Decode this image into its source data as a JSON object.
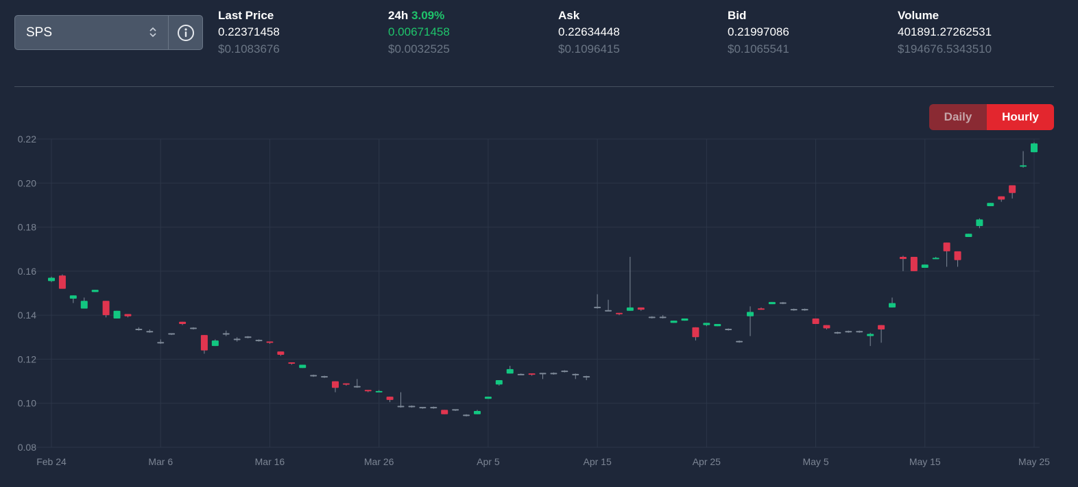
{
  "selector": {
    "value": "SPS",
    "arrows": "▲▼"
  },
  "stats": [
    {
      "label": "Last Price",
      "label_extra": "",
      "value": "0.22371458",
      "usd": "$0.1083676"
    },
    {
      "label": "24h",
      "label_extra": "3.09%",
      "value": "0.00671458",
      "usd": "$0.0032525"
    },
    {
      "label": "Ask",
      "label_extra": "",
      "value": "0.22634448",
      "usd": "$0.1096415"
    },
    {
      "label": "Bid",
      "label_extra": "",
      "value": "0.21997086",
      "usd": "$0.1065541"
    },
    {
      "label": "Volume",
      "label_extra": "",
      "value": "401891.27262531",
      "usd": "$194676.5343510"
    }
  ],
  "toggle": {
    "daily": "Daily",
    "hourly": "Hourly",
    "active": "hourly"
  },
  "colors": {
    "up": "#12c781",
    "down": "#e0354f",
    "neutral": "#7f8a99",
    "grid": "#2c3649",
    "axis_text": "#7c8594"
  },
  "chart_data": {
    "type": "candlestick",
    "title": "",
    "xlabel": "",
    "ylabel": "",
    "ylim": [
      0.08,
      0.22
    ],
    "yticks": [
      0.08,
      0.1,
      0.12,
      0.14,
      0.16,
      0.18,
      0.2,
      0.22
    ],
    "ytick_labels": [
      "0.08",
      "0.10",
      "0.12",
      "0.14",
      "0.16",
      "0.18",
      "0.20",
      "0.22"
    ],
    "xticks": [
      "Feb 24",
      "Mar 6",
      "Mar 16",
      "Mar 26",
      "Apr 5",
      "Apr 15",
      "Apr 25",
      "May 5",
      "May 15",
      "May 25"
    ],
    "grid": true,
    "legend": "none",
    "candles": [
      {
        "date": "Feb 24",
        "o": 0.1555,
        "h": 0.1575,
        "l": 0.155,
        "c": 0.157
      },
      {
        "date": "Feb 25",
        "o": 0.158,
        "h": 0.1585,
        "l": 0.152,
        "c": 0.152
      },
      {
        "date": "Feb 26",
        "o": 0.1475,
        "h": 0.149,
        "l": 0.1455,
        "c": 0.149
      },
      {
        "date": "Feb 27",
        "o": 0.143,
        "h": 0.148,
        "l": 0.143,
        "c": 0.1465
      },
      {
        "date": "Feb 28",
        "o": 0.1505,
        "h": 0.1515,
        "l": 0.1505,
        "c": 0.1515
      },
      {
        "date": "Mar 1",
        "o": 0.1465,
        "h": 0.1465,
        "l": 0.139,
        "c": 0.14
      },
      {
        "date": "Mar 2",
        "o": 0.1385,
        "h": 0.142,
        "l": 0.1385,
        "c": 0.142
      },
      {
        "date": "Mar 3",
        "o": 0.1405,
        "h": 0.1405,
        "l": 0.139,
        "c": 0.1395
      },
      {
        "date": "Mar 4",
        "o": 0.1335,
        "h": 0.1345,
        "l": 0.133,
        "c": 0.1335
      },
      {
        "date": "Mar 5",
        "o": 0.1325,
        "h": 0.1335,
        "l": 0.132,
        "c": 0.1325
      },
      {
        "date": "Mar 6",
        "o": 0.1275,
        "h": 0.129,
        "l": 0.127,
        "c": 0.1275
      },
      {
        "date": "Mar 7",
        "o": 0.1315,
        "h": 0.1315,
        "l": 0.131,
        "c": 0.1315
      },
      {
        "date": "Mar 8",
        "o": 0.137,
        "h": 0.137,
        "l": 0.1355,
        "c": 0.136
      },
      {
        "date": "Mar 9",
        "o": 0.134,
        "h": 0.1345,
        "l": 0.1335,
        "c": 0.134
      },
      {
        "date": "Mar 10",
        "o": 0.131,
        "h": 0.131,
        "l": 0.1225,
        "c": 0.124
      },
      {
        "date": "Mar 11",
        "o": 0.126,
        "h": 0.129,
        "l": 0.126,
        "c": 0.1285
      },
      {
        "date": "Mar 12",
        "o": 0.1315,
        "h": 0.133,
        "l": 0.1305,
        "c": 0.1315
      },
      {
        "date": "Mar 13",
        "o": 0.129,
        "h": 0.13,
        "l": 0.128,
        "c": 0.129
      },
      {
        "date": "Mar 14",
        "o": 0.13,
        "h": 0.1305,
        "l": 0.1295,
        "c": 0.13
      },
      {
        "date": "Mar 15",
        "o": 0.1285,
        "h": 0.129,
        "l": 0.128,
        "c": 0.1285
      },
      {
        "date": "Mar 16",
        "o": 0.128,
        "h": 0.128,
        "l": 0.127,
        "c": 0.1275
      },
      {
        "date": "Mar 17",
        "o": 0.1235,
        "h": 0.1235,
        "l": 0.1215,
        "c": 0.122
      },
      {
        "date": "Mar 18",
        "o": 0.1185,
        "h": 0.1185,
        "l": 0.1175,
        "c": 0.118
      },
      {
        "date": "Mar 19",
        "o": 0.116,
        "h": 0.1175,
        "l": 0.116,
        "c": 0.1175
      },
      {
        "date": "Mar 20",
        "o": 0.1125,
        "h": 0.113,
        "l": 0.112,
        "c": 0.1125
      },
      {
        "date": "Mar 21",
        "o": 0.112,
        "h": 0.1125,
        "l": 0.1115,
        "c": 0.112
      },
      {
        "date": "Mar 22",
        "o": 0.11,
        "h": 0.11,
        "l": 0.105,
        "c": 0.107
      },
      {
        "date": "Mar 23",
        "o": 0.109,
        "h": 0.109,
        "l": 0.108,
        "c": 0.1085
      },
      {
        "date": "Mar 24",
        "o": 0.1075,
        "h": 0.111,
        "l": 0.107,
        "c": 0.1075
      },
      {
        "date": "Mar 25",
        "o": 0.106,
        "h": 0.106,
        "l": 0.105,
        "c": 0.1055
      },
      {
        "date": "Mar 26",
        "o": 0.105,
        "h": 0.106,
        "l": 0.105,
        "c": 0.1055
      },
      {
        "date": "Mar 27",
        "o": 0.103,
        "h": 0.103,
        "l": 0.1005,
        "c": 0.1015
      },
      {
        "date": "Mar 28",
        "o": 0.0985,
        "h": 0.105,
        "l": 0.098,
        "c": 0.0985
      },
      {
        "date": "Mar 29",
        "o": 0.0985,
        "h": 0.099,
        "l": 0.098,
        "c": 0.0985
      },
      {
        "date": "Mar 30",
        "o": 0.098,
        "h": 0.098,
        "l": 0.0975,
        "c": 0.098
      },
      {
        "date": "Mar 31",
        "o": 0.098,
        "h": 0.0985,
        "l": 0.0975,
        "c": 0.098
      },
      {
        "date": "Apr 1",
        "o": 0.097,
        "h": 0.097,
        "l": 0.095,
        "c": 0.095
      },
      {
        "date": "Apr 2",
        "o": 0.097,
        "h": 0.097,
        "l": 0.0965,
        "c": 0.097
      },
      {
        "date": "Apr 3",
        "o": 0.0945,
        "h": 0.095,
        "l": 0.094,
        "c": 0.0945
      },
      {
        "date": "Apr 4",
        "o": 0.095,
        "h": 0.097,
        "l": 0.095,
        "c": 0.0965
      },
      {
        "date": "Apr 5",
        "o": 0.102,
        "h": 0.103,
        "l": 0.102,
        "c": 0.103
      },
      {
        "date": "Apr 6",
        "o": 0.1085,
        "h": 0.1105,
        "l": 0.108,
        "c": 0.1105
      },
      {
        "date": "Apr 7",
        "o": 0.1135,
        "h": 0.117,
        "l": 0.1135,
        "c": 0.1155
      },
      {
        "date": "Apr 8",
        "o": 0.113,
        "h": 0.1135,
        "l": 0.113,
        "c": 0.113
      },
      {
        "date": "Apr 9",
        "o": 0.1135,
        "h": 0.1135,
        "l": 0.1125,
        "c": 0.113
      },
      {
        "date": "Apr 10",
        "o": 0.1135,
        "h": 0.1135,
        "l": 0.111,
        "c": 0.1135
      },
      {
        "date": "Apr 11",
        "o": 0.1135,
        "h": 0.114,
        "l": 0.113,
        "c": 0.1135
      },
      {
        "date": "Apr 12",
        "o": 0.1145,
        "h": 0.115,
        "l": 0.114,
        "c": 0.1145
      },
      {
        "date": "Apr 13",
        "o": 0.113,
        "h": 0.1135,
        "l": 0.111,
        "c": 0.113
      },
      {
        "date": "Apr 14",
        "o": 0.112,
        "h": 0.1125,
        "l": 0.1105,
        "c": 0.112
      },
      {
        "date": "Apr 15",
        "o": 0.1435,
        "h": 0.1495,
        "l": 0.143,
        "c": 0.1435
      },
      {
        "date": "Apr 16",
        "o": 0.142,
        "h": 0.147,
        "l": 0.142,
        "c": 0.142
      },
      {
        "date": "Apr 17",
        "o": 0.141,
        "h": 0.141,
        "l": 0.14,
        "c": 0.1405
      },
      {
        "date": "Apr 18",
        "o": 0.142,
        "h": 0.1665,
        "l": 0.142,
        "c": 0.1435
      },
      {
        "date": "Apr 19",
        "o": 0.1435,
        "h": 0.1435,
        "l": 0.142,
        "c": 0.1425
      },
      {
        "date": "Apr 20",
        "o": 0.139,
        "h": 0.1395,
        "l": 0.1385,
        "c": 0.139
      },
      {
        "date": "Apr 21",
        "o": 0.139,
        "h": 0.14,
        "l": 0.1385,
        "c": 0.139
      },
      {
        "date": "Apr 22",
        "o": 0.1365,
        "h": 0.1375,
        "l": 0.1365,
        "c": 0.1375
      },
      {
        "date": "Apr 23",
        "o": 0.1375,
        "h": 0.1385,
        "l": 0.1375,
        "c": 0.1385
      },
      {
        "date": "Apr 24",
        "o": 0.1345,
        "h": 0.1345,
        "l": 0.1285,
        "c": 0.13
      },
      {
        "date": "Apr 25",
        "o": 0.1355,
        "h": 0.1365,
        "l": 0.135,
        "c": 0.1365
      },
      {
        "date": "Apr 26",
        "o": 0.135,
        "h": 0.136,
        "l": 0.135,
        "c": 0.136
      },
      {
        "date": "Apr 27",
        "o": 0.1335,
        "h": 0.134,
        "l": 0.133,
        "c": 0.1335
      },
      {
        "date": "Apr 28",
        "o": 0.128,
        "h": 0.1285,
        "l": 0.1275,
        "c": 0.128
      },
      {
        "date": "Apr 29",
        "o": 0.1395,
        "h": 0.144,
        "l": 0.1305,
        "c": 0.1415
      },
      {
        "date": "Apr 30",
        "o": 0.143,
        "h": 0.1435,
        "l": 0.1425,
        "c": 0.1425
      },
      {
        "date": "May 1",
        "o": 0.145,
        "h": 0.146,
        "l": 0.145,
        "c": 0.146
      },
      {
        "date": "May 2",
        "o": 0.1455,
        "h": 0.146,
        "l": 0.145,
        "c": 0.1455
      },
      {
        "date": "May 3",
        "o": 0.1425,
        "h": 0.143,
        "l": 0.142,
        "c": 0.1425
      },
      {
        "date": "May 4",
        "o": 0.1425,
        "h": 0.143,
        "l": 0.142,
        "c": 0.1425
      },
      {
        "date": "May 5",
        "o": 0.1385,
        "h": 0.1385,
        "l": 0.136,
        "c": 0.136
      },
      {
        "date": "May 6",
        "o": 0.1355,
        "h": 0.1355,
        "l": 0.1335,
        "c": 0.134
      },
      {
        "date": "May 7",
        "o": 0.132,
        "h": 0.1325,
        "l": 0.1315,
        "c": 0.132
      },
      {
        "date": "May 8",
        "o": 0.1325,
        "h": 0.133,
        "l": 0.132,
        "c": 0.1325
      },
      {
        "date": "May 9",
        "o": 0.1325,
        "h": 0.133,
        "l": 0.132,
        "c": 0.1325
      },
      {
        "date": "May 10",
        "o": 0.1305,
        "h": 0.132,
        "l": 0.126,
        "c": 0.1315
      },
      {
        "date": "May 11",
        "o": 0.1355,
        "h": 0.1355,
        "l": 0.1275,
        "c": 0.1335
      },
      {
        "date": "May 12",
        "o": 0.1435,
        "h": 0.148,
        "l": 0.1435,
        "c": 0.1455
      },
      {
        "date": "May 13",
        "o": 0.1665,
        "h": 0.167,
        "l": 0.16,
        "c": 0.1655
      },
      {
        "date": "May 14",
        "o": 0.1665,
        "h": 0.1665,
        "l": 0.16,
        "c": 0.16
      },
      {
        "date": "May 15",
        "o": 0.1615,
        "h": 0.163,
        "l": 0.1615,
        "c": 0.163
      },
      {
        "date": "May 16",
        "o": 0.1655,
        "h": 0.1665,
        "l": 0.1655,
        "c": 0.166
      },
      {
        "date": "May 17",
        "o": 0.173,
        "h": 0.173,
        "l": 0.162,
        "c": 0.169
      },
      {
        "date": "May 18",
        "o": 0.169,
        "h": 0.169,
        "l": 0.162,
        "c": 0.165
      },
      {
        "date": "May 19",
        "o": 0.1755,
        "h": 0.177,
        "l": 0.1755,
        "c": 0.177
      },
      {
        "date": "May 20",
        "o": 0.1805,
        "h": 0.184,
        "l": 0.1795,
        "c": 0.1835
      },
      {
        "date": "May 21",
        "o": 0.1895,
        "h": 0.191,
        "l": 0.1895,
        "c": 0.191
      },
      {
        "date": "May 22",
        "o": 0.194,
        "h": 0.194,
        "l": 0.1915,
        "c": 0.1925
      },
      {
        "date": "May 23",
        "o": 0.199,
        "h": 0.199,
        "l": 0.193,
        "c": 0.1955
      },
      {
        "date": "May 24",
        "o": 0.2075,
        "h": 0.2145,
        "l": 0.207,
        "c": 0.208
      },
      {
        "date": "May 25",
        "o": 0.214,
        "h": 0.2185,
        "l": 0.214,
        "c": 0.218
      }
    ]
  }
}
